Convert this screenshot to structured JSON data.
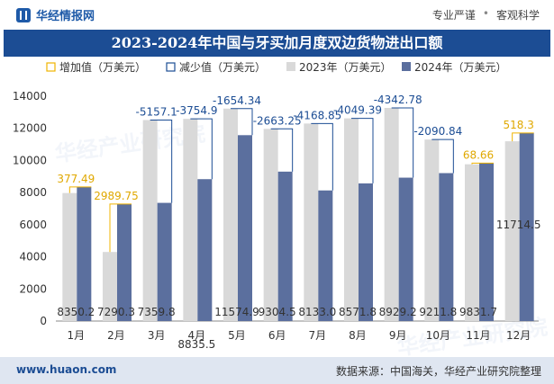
{
  "header": {
    "brand": "华经情报网",
    "tags": [
      "专业严谨",
      "客观科学"
    ]
  },
  "title": "2023-2024年中国与牙买加月度双边货物进出口额",
  "footer": {
    "site": "www.huaon.com",
    "source": "数据来源：中国海关，华经产业研究院整理"
  },
  "watermark": "华经产业研究院",
  "colors": {
    "bar2023": "#d9d9d9",
    "bar2024": "#5b6f9e",
    "increase": "#f0b400",
    "decrease": "#1c4d94",
    "title_bg": "#1c4d94"
  },
  "chart_data": {
    "type": "bar",
    "categories": [
      "1月",
      "2月",
      "3月",
      "4月",
      "5月",
      "6月",
      "7月",
      "8月",
      "9月",
      "10月",
      "11月",
      "12月"
    ],
    "ylim": [
      0,
      14000
    ],
    "yticks": [
      0,
      2000,
      4000,
      6000,
      8000,
      10000,
      12000,
      14000
    ],
    "legend": {
      "position": "top",
      "items": [
        "增加值（万美元）",
        "减少值（万美元）",
        "2023年（万美元）",
        "2024年（万美元）"
      ]
    },
    "series": [
      {
        "name": "2023年（万美元）",
        "values": [
          7972.71,
          4300.55,
          12516.9,
          12590.4,
          13229.24,
          11967.75,
          12301.85,
          12621.16,
          13272.0,
          11302.64,
          9763.04,
          11196.2
        ]
      },
      {
        "name": "2024年（万美元）",
        "values": [
          8350.2,
          7290.3,
          7359.8,
          8835.5,
          11574.9,
          9304.5,
          8133.0,
          8571.8,
          8929.2,
          9211.8,
          9831.7,
          11714.5
        ],
        "labels": [
          "8350.2",
          "7290.3",
          "7359.8",
          "8835.5",
          "11574.9",
          "9304.5",
          "8133.0",
          "8571.8",
          "8929.2",
          "9211.8",
          "9831.7",
          "11714.5"
        ]
      }
    ],
    "change_labels": [
      "377.49",
      "2989.75",
      "-5157.1",
      "-3754.9",
      "-1654.34",
      "-2663.25",
      "-4168.85",
      "-4049.39",
      "-4342.78",
      "-2090.84",
      "68.66",
      "518.3"
    ]
  }
}
